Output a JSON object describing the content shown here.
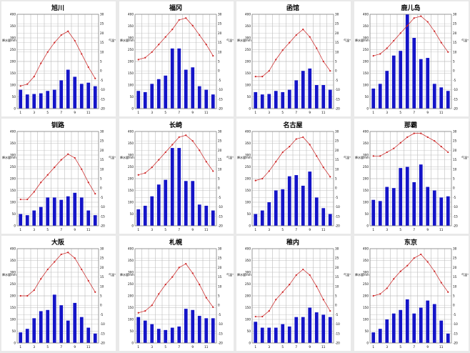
{
  "chart_data": [
    {
      "type": "bar+line",
      "title": "旭川",
      "y1label": "降水量mm",
      "y2label": "气温℃",
      "x": [
        1,
        2,
        3,
        4,
        5,
        6,
        7,
        8,
        9,
        10,
        11,
        12
      ],
      "xticks": [
        1,
        3,
        5,
        7,
        9,
        11
      ],
      "ylim": [
        0,
        400
      ],
      "y2lim": [
        -20,
        30
      ],
      "yticks": [
        0,
        50,
        100,
        150,
        200,
        250,
        300,
        350,
        400
      ],
      "y2ticks": [
        -20,
        -15,
        -10,
        -5,
        0,
        5,
        10,
        15,
        20,
        25,
        30
      ],
      "series": [
        {
          "kind": "bar",
          "values": [
            80,
            60,
            62,
            65,
            75,
            80,
            120,
            165,
            135,
            105,
            110,
            95
          ]
        },
        {
          "kind": "line",
          "values": [
            -8,
            -7,
            -3,
            4,
            10,
            15,
            19,
            21,
            16,
            9,
            2,
            -4
          ]
        }
      ]
    },
    {
      "type": "bar+line",
      "title": "福冈",
      "y1label": "降水量mm",
      "y2label": "气温℃",
      "x": [
        1,
        2,
        3,
        4,
        5,
        6,
        7,
        8,
        9,
        10,
        11,
        12
      ],
      "xticks": [
        1,
        3,
        5,
        7,
        9,
        11
      ],
      "ylim": [
        0,
        400
      ],
      "y2lim": [
        -20,
        30
      ],
      "yticks": [
        0,
        50,
        100,
        150,
        200,
        250,
        300,
        350,
        400
      ],
      "y2ticks": [
        -20,
        -15,
        -10,
        -5,
        0,
        5,
        10,
        15,
        20,
        25,
        30
      ],
      "series": [
        {
          "kind": "bar",
          "values": [
            75,
            70,
            105,
            125,
            140,
            255,
            255,
            165,
            175,
            95,
            80,
            60
          ]
        },
        {
          "kind": "line",
          "values": [
            6,
            7,
            10,
            14,
            18,
            22,
            27,
            28,
            24,
            19,
            14,
            8
          ]
        }
      ]
    },
    {
      "type": "bar+line",
      "title": "函馆",
      "y1label": "降水量mm",
      "y2label": "气温℃",
      "x": [
        1,
        2,
        3,
        4,
        5,
        6,
        7,
        8,
        9,
        10,
        11,
        12
      ],
      "xticks": [
        1,
        3,
        5,
        7,
        9,
        11
      ],
      "ylim": [
        0,
        400
      ],
      "y2lim": [
        -20,
        30
      ],
      "yticks": [
        0,
        50,
        100,
        150,
        200,
        250,
        300,
        350,
        400
      ],
      "y2ticks": [
        -20,
        -15,
        -10,
        -5,
        0,
        5,
        10,
        15,
        20,
        25,
        30
      ],
      "series": [
        {
          "kind": "bar",
          "values": [
            70,
            60,
            62,
            75,
            70,
            80,
            120,
            160,
            170,
            100,
            100,
            80
          ]
        },
        {
          "kind": "line",
          "values": [
            -3,
            -3,
            0,
            6,
            11,
            15,
            19,
            22,
            18,
            12,
            5,
            0
          ]
        }
      ]
    },
    {
      "type": "bar+line",
      "title": "鹿儿岛",
      "y1label": "降水量mm",
      "y2label": "气温℃",
      "x": [
        1,
        2,
        3,
        4,
        5,
        6,
        7,
        8,
        9,
        10,
        11,
        12
      ],
      "xticks": [
        1,
        3,
        5,
        7,
        9,
        11
      ],
      "ylim": [
        0,
        400
      ],
      "y2lim": [
        -20,
        30
      ],
      "yticks": [
        0,
        50,
        100,
        150,
        200,
        250,
        300,
        350,
        400
      ],
      "y2ticks": [
        -20,
        -15,
        -10,
        -5,
        0,
        5,
        10,
        15,
        20,
        25,
        30
      ],
      "series": [
        {
          "kind": "bar",
          "values": [
            85,
            105,
            160,
            225,
            245,
            400,
            300,
            210,
            215,
            105,
            90,
            75
          ]
        },
        {
          "kind": "line",
          "values": [
            8,
            9,
            12,
            16,
            20,
            24,
            28,
            29,
            26,
            21,
            15,
            10
          ]
        }
      ]
    },
    {
      "type": "bar+line",
      "title": "钏路",
      "y1label": "降水量mm",
      "y2label": "气温℃",
      "x": [
        1,
        2,
        3,
        4,
        5,
        6,
        7,
        8,
        9,
        10,
        11,
        12
      ],
      "xticks": [
        1,
        3,
        5,
        7,
        9,
        11
      ],
      "ylim": [
        0,
        400
      ],
      "y2lim": [
        -20,
        30
      ],
      "yticks": [
        0,
        50,
        100,
        150,
        200,
        250,
        300,
        350,
        400
      ],
      "y2ticks": [
        -20,
        -15,
        -10,
        -5,
        0,
        5,
        10,
        15,
        20,
        25,
        30
      ],
      "series": [
        {
          "kind": "bar",
          "values": [
            50,
            45,
            65,
            80,
            120,
            120,
            110,
            125,
            140,
            120,
            65,
            45
          ]
        },
        {
          "kind": "line",
          "values": [
            -6,
            -6,
            -2,
            3,
            7,
            11,
            15,
            18,
            16,
            10,
            3,
            -3
          ]
        }
      ]
    },
    {
      "type": "bar+line",
      "title": "长崎",
      "y1label": "降水量mm",
      "y2label": "气温℃",
      "x": [
        1,
        2,
        3,
        4,
        5,
        6,
        7,
        8,
        9,
        10,
        11,
        12
      ],
      "xticks": [
        1,
        3,
        5,
        7,
        9,
        11
      ],
      "ylim": [
        0,
        400
      ],
      "y2lim": [
        -20,
        30
      ],
      "yticks": [
        0,
        50,
        100,
        150,
        200,
        250,
        300,
        350,
        400
      ],
      "y2ticks": [
        -20,
        -15,
        -10,
        -5,
        0,
        5,
        10,
        15,
        20,
        25,
        30
      ],
      "series": [
        {
          "kind": "bar",
          "values": [
            70,
            85,
            125,
            175,
            195,
            330,
            330,
            190,
            190,
            90,
            85,
            65
          ]
        },
        {
          "kind": "line",
          "values": [
            7,
            8,
            11,
            15,
            19,
            23,
            27,
            28,
            25,
            20,
            14,
            9
          ]
        }
      ]
    },
    {
      "type": "bar+line",
      "title": "名古屋",
      "y1label": "降水量mm",
      "y2label": "气温℃",
      "x": [
        1,
        2,
        3,
        4,
        5,
        6,
        7,
        8,
        9,
        10,
        11,
        12
      ],
      "xticks": [
        1,
        3,
        5,
        7,
        9,
        11
      ],
      "ylim": [
        0,
        400
      ],
      "y2lim": [
        -20,
        30
      ],
      "yticks": [
        0,
        50,
        100,
        150,
        200,
        250,
        300,
        350,
        400
      ],
      "y2ticks": [
        -20,
        -15,
        -10,
        -5,
        0,
        5,
        10,
        15,
        20,
        25,
        30
      ],
      "series": [
        {
          "kind": "bar",
          "values": [
            50,
            65,
            100,
            150,
            155,
            210,
            215,
            170,
            230,
            120,
            75,
            50
          ]
        },
        {
          "kind": "line",
          "values": [
            4,
            5,
            9,
            14,
            19,
            22,
            26,
            27,
            23,
            17,
            11,
            6
          ]
        }
      ]
    },
    {
      "type": "bar+line",
      "title": "那霸",
      "y1label": "降水量mm",
      "y2label": "气温℃",
      "x": [
        1,
        2,
        3,
        4,
        5,
        6,
        7,
        8,
        9,
        10,
        11,
        12
      ],
      "xticks": [
        1,
        3,
        5,
        7,
        9,
        11
      ],
      "ylim": [
        0,
        400
      ],
      "y2lim": [
        -20,
        30
      ],
      "yticks": [
        0,
        50,
        100,
        150,
        200,
        250,
        300,
        350,
        400
      ],
      "y2ticks": [
        -20,
        -15,
        -10,
        -5,
        0,
        5,
        10,
        15,
        20,
        25,
        30
      ],
      "series": [
        {
          "kind": "bar",
          "values": [
            110,
            105,
            165,
            160,
            245,
            250,
            185,
            260,
            165,
            150,
            120,
            125
          ]
        },
        {
          "kind": "line",
          "values": [
            17,
            17,
            19,
            21,
            24,
            27,
            29,
            29,
            27,
            25,
            22,
            19
          ]
        }
      ]
    },
    {
      "type": "bar+line",
      "title": "大阪",
      "y1label": "降水量mm",
      "y2label": "气温℃",
      "x": [
        1,
        2,
        3,
        4,
        5,
        6,
        7,
        8,
        9,
        10,
        11,
        12
      ],
      "xticks": [
        1,
        3,
        5,
        7,
        9,
        11
      ],
      "ylim": [
        0,
        400
      ],
      "y2lim": [
        -20,
        30
      ],
      "yticks": [
        0,
        50,
        100,
        150,
        200,
        250,
        300,
        350,
        400
      ],
      "y2ticks": [
        -20,
        -15,
        -10,
        -5,
        0,
        5,
        10,
        15,
        20,
        25,
        30
      ],
      "series": [
        {
          "kind": "bar",
          "values": [
            45,
            60,
            105,
            135,
            140,
            205,
            160,
            95,
            170,
            110,
            65,
            40
          ]
        },
        {
          "kind": "line",
          "values": [
            5,
            5,
            8,
            14,
            19,
            23,
            27,
            28,
            25,
            19,
            13,
            7
          ]
        }
      ]
    },
    {
      "type": "bar+line",
      "title": "札幌",
      "y1label": "降水量mm",
      "y2label": "气温℃",
      "x": [
        1,
        2,
        3,
        4,
        5,
        6,
        7,
        8,
        9,
        10,
        11,
        12
      ],
      "xticks": [
        1,
        3,
        5,
        7,
        9,
        11
      ],
      "ylim": [
        0,
        400
      ],
      "y2lim": [
        -20,
        30
      ],
      "yticks": [
        0,
        50,
        100,
        150,
        200,
        250,
        300,
        350,
        400
      ],
      "y2ticks": [
        -20,
        -15,
        -10,
        -5,
        0,
        5,
        10,
        15,
        20,
        25,
        30
      ],
      "series": [
        {
          "kind": "bar",
          "values": [
            110,
            95,
            80,
            60,
            55,
            65,
            70,
            145,
            140,
            115,
            105,
            105
          ]
        },
        {
          "kind": "line",
          "values": [
            -4,
            -3,
            0,
            6,
            11,
            15,
            20,
            22,
            17,
            11,
            4,
            -1
          ]
        }
      ]
    },
    {
      "type": "bar+line",
      "title": "稚内",
      "y1label": "降水量mm",
      "y2label": "气温℃",
      "x": [
        1,
        2,
        3,
        4,
        5,
        6,
        7,
        8,
        9,
        10,
        11,
        12
      ],
      "xticks": [
        1,
        3,
        5,
        7,
        9,
        11
      ],
      "ylim": [
        0,
        400
      ],
      "y2lim": [
        -20,
        30
      ],
      "yticks": [
        0,
        50,
        100,
        150,
        200,
        250,
        300,
        350,
        400
      ],
      "y2ticks": [
        -20,
        -15,
        -10,
        -5,
        0,
        5,
        10,
        15,
        20,
        25,
        30
      ],
      "series": [
        {
          "kind": "bar",
          "values": [
            90,
            65,
            65,
            65,
            80,
            70,
            110,
            110,
            150,
            130,
            120,
            110
          ]
        },
        {
          "kind": "line",
          "values": [
            -6,
            -6,
            -3,
            3,
            7,
            11,
            16,
            19,
            16,
            10,
            3,
            -3
          ]
        }
      ]
    },
    {
      "type": "bar+line",
      "title": "东京",
      "y1label": "降水量mm",
      "y2label": "气温℃",
      "x": [
        1,
        2,
        3,
        4,
        5,
        6,
        7,
        8,
        9,
        10,
        11,
        12
      ],
      "xticks": [
        1,
        3,
        5,
        7,
        9,
        11
      ],
      "ylim": [
        0,
        400
      ],
      "y2lim": [
        -20,
        30
      ],
      "yticks": [
        0,
        50,
        100,
        150,
        200,
        250,
        300,
        350,
        400
      ],
      "y2ticks": [
        -20,
        -15,
        -10,
        -5,
        0,
        5,
        10,
        15,
        20,
        25,
        30
      ],
      "series": [
        {
          "kind": "bar",
          "values": [
            45,
            60,
            100,
            125,
            140,
            185,
            125,
            150,
            180,
            165,
            95,
            40
          ]
        },
        {
          "kind": "line",
          "values": [
            5,
            6,
            9,
            14,
            18,
            21,
            25,
            27,
            23,
            18,
            12,
            7
          ]
        }
      ]
    }
  ],
  "colors": {
    "bar": "#1414c8",
    "line": "#cc2222",
    "grid": "#bdbdbd",
    "frame": "#7f7f7f"
  }
}
